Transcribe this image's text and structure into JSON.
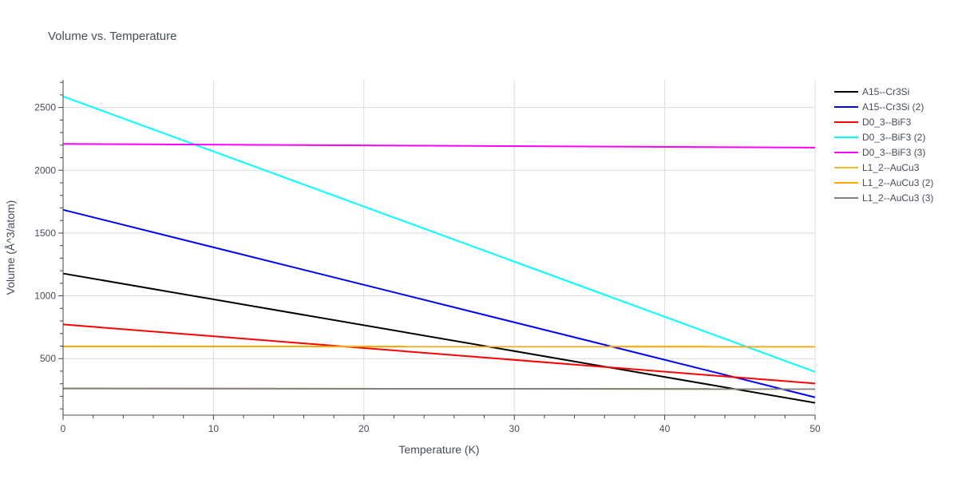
{
  "chart_data": {
    "type": "line",
    "title": "Volume vs. Temperature",
    "xlabel": "Temperature (K)",
    "ylabel": "Volume (Å^3/atom)",
    "xlim": [
      0,
      50
    ],
    "ylim": [
      50,
      2720
    ],
    "xticks": [
      0,
      10,
      20,
      30,
      40,
      50
    ],
    "yticks": [
      500,
      1000,
      1500,
      2000,
      2500
    ],
    "grid": true,
    "legend_position": "right",
    "series": [
      {
        "name": "A15--Cr3Si",
        "color": "#000000",
        "x": [
          0,
          50
        ],
        "y": [
          1178,
          148
        ]
      },
      {
        "name": "A15--Cr3Si (2)",
        "color": "#0000ff",
        "x": [
          0,
          50
        ],
        "y": [
          1685,
          192
        ]
      },
      {
        "name": "D0_3--BiF3",
        "color": "#ff0000",
        "x": [
          0,
          50
        ],
        "y": [
          772,
          302
        ]
      },
      {
        "name": "D0_3--BiF3 (2)",
        "color": "#00ffff",
        "x": [
          0,
          50
        ],
        "y": [
          2588,
          395
        ]
      },
      {
        "name": "D0_3--BiF3 (3)",
        "color": "#ff00ff",
        "x": [
          0,
          50
        ],
        "y": [
          2210,
          2180
        ]
      },
      {
        "name": "L1_2--AuCu3",
        "color": "#f0c020",
        "x": [
          0,
          50
        ],
        "y": [
          262,
          258
        ]
      },
      {
        "name": "L1_2--AuCu3 (2)",
        "color": "#ffa500",
        "x": [
          0,
          50
        ],
        "y": [
          597,
          595
        ]
      },
      {
        "name": "L1_2--AuCu3 (3)",
        "color": "#808080",
        "x": [
          0,
          50
        ],
        "y": [
          262,
          258
        ]
      }
    ]
  }
}
